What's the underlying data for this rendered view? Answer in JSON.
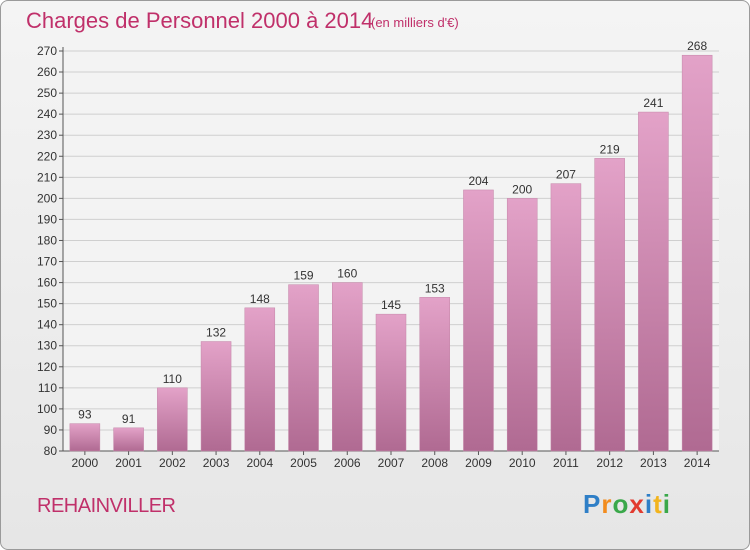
{
  "chart_data": {
    "type": "bar",
    "title": "Charges de Personnel 2000 à 2014",
    "subtitle": "(en milliers d'€)",
    "categories": [
      "2000",
      "2001",
      "2002",
      "2003",
      "2004",
      "2005",
      "2006",
      "2007",
      "2008",
      "2009",
      "2010",
      "2011",
      "2012",
      "2013",
      "2014"
    ],
    "values": [
      93,
      91,
      110,
      132,
      148,
      159,
      160,
      145,
      153,
      204,
      200,
      207,
      219,
      241,
      268
    ],
    "ylim": [
      80,
      270
    ],
    "yticks": [
      80,
      90,
      100,
      110,
      120,
      130,
      140,
      150,
      160,
      170,
      180,
      190,
      200,
      210,
      220,
      230,
      240,
      250,
      260,
      270
    ],
    "grid": true,
    "bar_color_top": "#e3a2c8",
    "bar_color_bottom": "#b06a92"
  },
  "footer": {
    "place": "REHAINVILLER",
    "logo_letters": [
      "P",
      "r",
      "o",
      "x",
      "i",
      "t",
      "i"
    ],
    "logo_colors": [
      "#2f7fc7",
      "#f28c1e",
      "#3aa84a",
      "#e23b2f",
      "#2f7fc7",
      "#f2b41e",
      "#3aa84a"
    ]
  }
}
